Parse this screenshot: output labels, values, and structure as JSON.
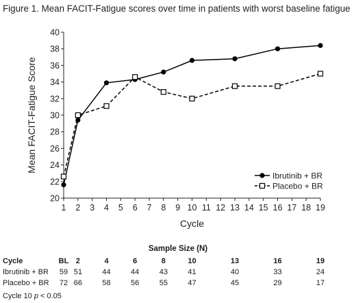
{
  "figure_title": "Figure 1. Mean FACIT-Fatigue scores over time in patients with worst baseline fatigue",
  "chart_data": {
    "type": "line",
    "title": "Figure 1. Mean FACIT-Fatigue scores over time in patients with worst baseline fatigue",
    "xlabel": "Cycle",
    "ylabel": "Mean FACIT-Fatigue Score",
    "xlim": [
      1,
      19
    ],
    "ylim": [
      20,
      40
    ],
    "xticks": [
      1,
      2,
      3,
      4,
      5,
      6,
      7,
      8,
      9,
      10,
      11,
      12,
      13,
      14,
      15,
      16,
      17,
      18,
      19
    ],
    "yticks": [
      20,
      22,
      24,
      26,
      28,
      30,
      32,
      34,
      36,
      38,
      40
    ],
    "grid": false,
    "legend_position": "lower-right",
    "series": [
      {
        "name": "Ibrutinib + BR",
        "marker": "filled-circle",
        "line": "solid",
        "color": "#000000",
        "x": [
          1,
          2,
          4,
          6,
          8,
          10,
          13,
          16,
          19
        ],
        "y": [
          21.6,
          29.4,
          33.9,
          34.3,
          35.2,
          36.6,
          36.8,
          38.0,
          38.4
        ]
      },
      {
        "name": "Placebo + BR",
        "marker": "open-square",
        "line": "dashed",
        "color": "#000000",
        "x": [
          1,
          2,
          4,
          6,
          8,
          10,
          13,
          16,
          19
        ],
        "y": [
          22.6,
          30.0,
          31.1,
          34.6,
          32.8,
          32.0,
          33.5,
          33.5,
          35.0
        ]
      }
    ]
  },
  "sample_size": {
    "title": "Sample Size (N)",
    "header_label": "Cycle",
    "columns": [
      "BL",
      "2",
      "4",
      "6",
      "8",
      "10",
      "13",
      "16",
      "19"
    ],
    "rows": [
      {
        "label": "Ibrutinib + BR",
        "values": [
          "59",
          "51",
          "44",
          "44",
          "43",
          "41",
          "40",
          "33",
          "24"
        ]
      },
      {
        "label": "Placebo + BR",
        "values": [
          "72",
          "66",
          "58",
          "56",
          "55",
          "47",
          "45",
          "29",
          "17"
        ]
      }
    ]
  },
  "footnote": "Cycle 10 p < 0.05"
}
